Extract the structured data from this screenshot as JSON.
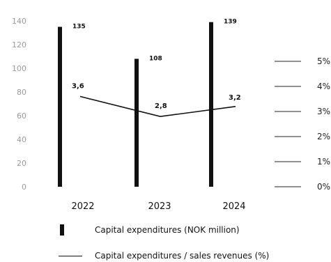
{
  "chart_data": {
    "type": "bar",
    "categories": [
      "2022",
      "2023",
      "2024"
    ],
    "series": [
      {
        "name": "Capital expenditures (NOK million)",
        "type": "bar",
        "axis": "left",
        "values": [
          135,
          108,
          139
        ],
        "labels": [
          "135",
          "108",
          "139"
        ]
      },
      {
        "name": "Capital expenditures / sales revenues (%)",
        "type": "line",
        "axis": "right",
        "values": [
          3.6,
          2.8,
          3.2
        ],
        "labels": [
          "3,6",
          "2,8",
          "3,2"
        ]
      }
    ],
    "yleft": {
      "ticks": [
        "0",
        "20",
        "40",
        "60",
        "80",
        "100",
        "120",
        "140"
      ],
      "lim": [
        0,
        140
      ]
    },
    "yright": {
      "ticks": [
        "0%",
        "1%",
        "2%",
        "3%",
        "4%",
        "5%"
      ],
      "lim": [
        0,
        5
      ]
    },
    "legend_position": "bottom",
    "grid": false,
    "colors": {
      "bar": "#111111",
      "line": "#111111",
      "left_ticks": "#9a9a9a"
    }
  }
}
